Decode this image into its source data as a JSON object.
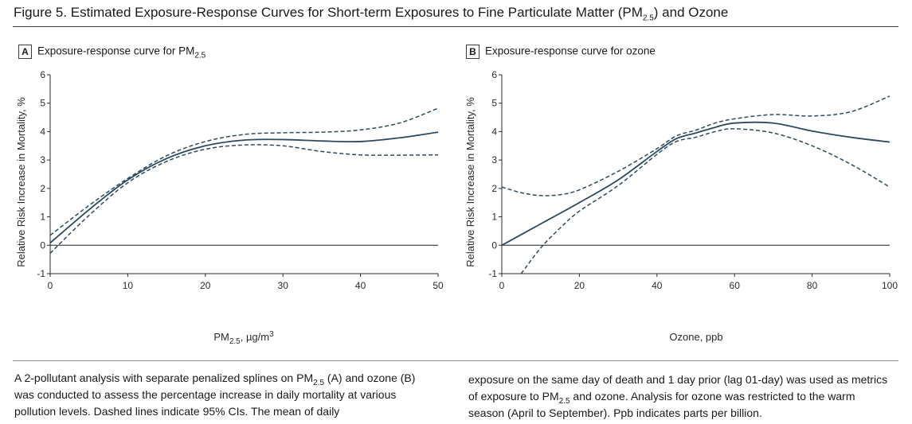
{
  "figure": {
    "title": "Figure 5. Estimated Exposure-Response Curves for Short-term Exposures to Fine Particulate Matter (PM",
    "title_sub": "2.5",
    "title_end": ") and Ozone"
  },
  "caption": {
    "left_1": "A 2-pollutant analysis with separate penalized splines on PM",
    "left_1_sub": "2.5",
    "left_2": " (A) and ozone (B) was conducted to assess the percentage increase in daily mortality at various pollution levels. Dashed lines indicate 95% CIs. The mean of daily",
    "right_1": "exposure on the same day of death and 1 day prior (lag 01-day) was used as metrics of exposure to PM",
    "right_1_sub": "2.5",
    "right_2": " and ozone. Analysis for ozone was restricted to the warm season (April to September). Ppb indicates parts per billion."
  },
  "colors": {
    "line": "#2e4a5e",
    "axis": "#2b2b2b"
  },
  "chart_data": [
    {
      "type": "line",
      "panel": "A",
      "title": "Exposure-response curve for PM",
      "title_sub": "2.5",
      "xlabel": "PM",
      "xlabel_sub": "2.5",
      "xlabel_end": ", µg/m",
      "xlabel_sup": "3",
      "ylabel": "Relative Risk Increase in Mortality, %",
      "xlim": [
        0,
        50
      ],
      "ylim": [
        -1,
        6
      ],
      "xticks": [
        0,
        10,
        20,
        30,
        40,
        50
      ],
      "yticks": [
        -1,
        0,
        1,
        2,
        3,
        4,
        5,
        6
      ],
      "series": [
        {
          "style": "solid",
          "x": [
            0,
            5,
            10,
            15,
            20,
            25,
            30,
            35,
            40,
            45,
            50
          ],
          "values": [
            0.08,
            1.25,
            2.3,
            3.05,
            3.5,
            3.7,
            3.72,
            3.67,
            3.65,
            3.78,
            3.98
          ]
        },
        {
          "style": "dashed",
          "x": [
            0,
            5,
            10,
            15,
            20,
            25,
            30,
            35,
            40,
            45,
            50
          ],
          "values": [
            0.35,
            1.4,
            2.35,
            3.15,
            3.65,
            3.9,
            3.96,
            3.98,
            4.06,
            4.3,
            4.82
          ]
        },
        {
          "style": "dashed",
          "x": [
            0,
            5,
            10,
            15,
            20,
            25,
            30,
            35,
            40,
            45,
            50
          ],
          "values": [
            -0.28,
            1.05,
            2.2,
            2.95,
            3.38,
            3.53,
            3.5,
            3.3,
            3.18,
            3.17,
            3.18
          ]
        }
      ]
    },
    {
      "type": "line",
      "panel": "B",
      "title": "Exposure-response curve for ozone",
      "xlabel": "Ozone, ppb",
      "ylabel": "Relative Risk Increase in Mortality, %",
      "xlim": [
        0,
        100
      ],
      "ylim": [
        -1,
        6
      ],
      "xticks": [
        0,
        20,
        40,
        60,
        80,
        100
      ],
      "yticks": [
        -1,
        0,
        1,
        2,
        3,
        4,
        5,
        6
      ],
      "series": [
        {
          "style": "solid",
          "x": [
            0,
            10,
            20,
            30,
            40,
            45,
            50,
            55,
            60,
            70,
            80,
            90,
            100
          ],
          "values": [
            0,
            0.75,
            1.5,
            2.3,
            3.3,
            3.75,
            3.95,
            4.15,
            4.3,
            4.3,
            4.02,
            3.8,
            3.63
          ]
        },
        {
          "style": "dashed",
          "x": [
            0,
            5,
            10,
            15,
            20,
            30,
            40,
            45,
            50,
            55,
            60,
            70,
            80,
            90,
            100
          ],
          "values": [
            2.05,
            1.85,
            1.75,
            1.78,
            1.95,
            2.6,
            3.4,
            3.85,
            4.05,
            4.3,
            4.45,
            4.6,
            4.55,
            4.7,
            5.25
          ]
        },
        {
          "style": "dashed",
          "x": [
            5,
            10,
            15,
            20,
            30,
            40,
            45,
            50,
            55,
            60,
            70,
            80,
            90,
            100
          ],
          "values": [
            -1,
            -0.1,
            0.6,
            1.2,
            2.1,
            3.2,
            3.65,
            3.8,
            4.0,
            4.1,
            3.95,
            3.5,
            2.85,
            2.05
          ]
        }
      ]
    }
  ]
}
